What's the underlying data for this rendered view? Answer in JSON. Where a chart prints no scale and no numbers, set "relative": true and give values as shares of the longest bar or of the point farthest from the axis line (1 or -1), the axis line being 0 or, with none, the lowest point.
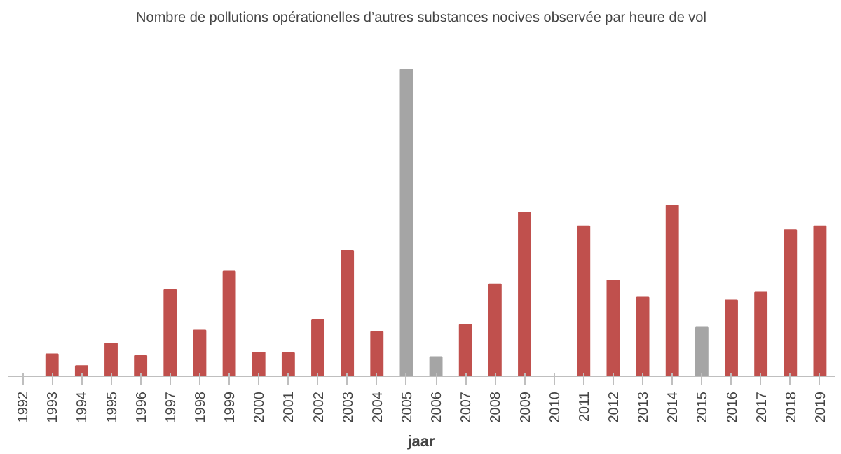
{
  "chart_data": {
    "type": "bar",
    "title": "Nombre de pollutions opérationelles d’autres substances nocives observée par heure de vol",
    "xlabel": "jaar",
    "relative": true,
    "grid": false,
    "categories": [
      "1992",
      "1993",
      "1994",
      "1995",
      "1996",
      "1997",
      "1998",
      "1999",
      "2000",
      "2001",
      "2002",
      "2003",
      "2004",
      "2005",
      "2006",
      "2007",
      "2008",
      "2009",
      "2010",
      "2011",
      "2012",
      "2013",
      "2014",
      "2015",
      "2016",
      "2017",
      "2018",
      "2019"
    ],
    "values": [
      0,
      0.072,
      0.034,
      0.107,
      0.067,
      0.282,
      0.15,
      0.342,
      0.078,
      0.076,
      0.183,
      0.409,
      0.145,
      1,
      0.063,
      0.168,
      0.3,
      0.535,
      0,
      0.49,
      0.313,
      0.257,
      0.557,
      0.159,
      0.248,
      0.273,
      0.477,
      0.49
    ],
    "colors": [
      "#c0504d",
      "#c0504d",
      "#c0504d",
      "#c0504d",
      "#c0504d",
      "#c0504d",
      "#c0504d",
      "#c0504d",
      "#c0504d",
      "#c0504d",
      "#c0504d",
      "#c0504d",
      "#c0504d",
      "#a5a5a5",
      "#a5a5a5",
      "#c0504d",
      "#c0504d",
      "#c0504d",
      "#c0504d",
      "#c0504d",
      "#c0504d",
      "#c0504d",
      "#c0504d",
      "#a5a5a5",
      "#c0504d",
      "#c0504d",
      "#c0504d",
      "#c0504d"
    ]
  }
}
